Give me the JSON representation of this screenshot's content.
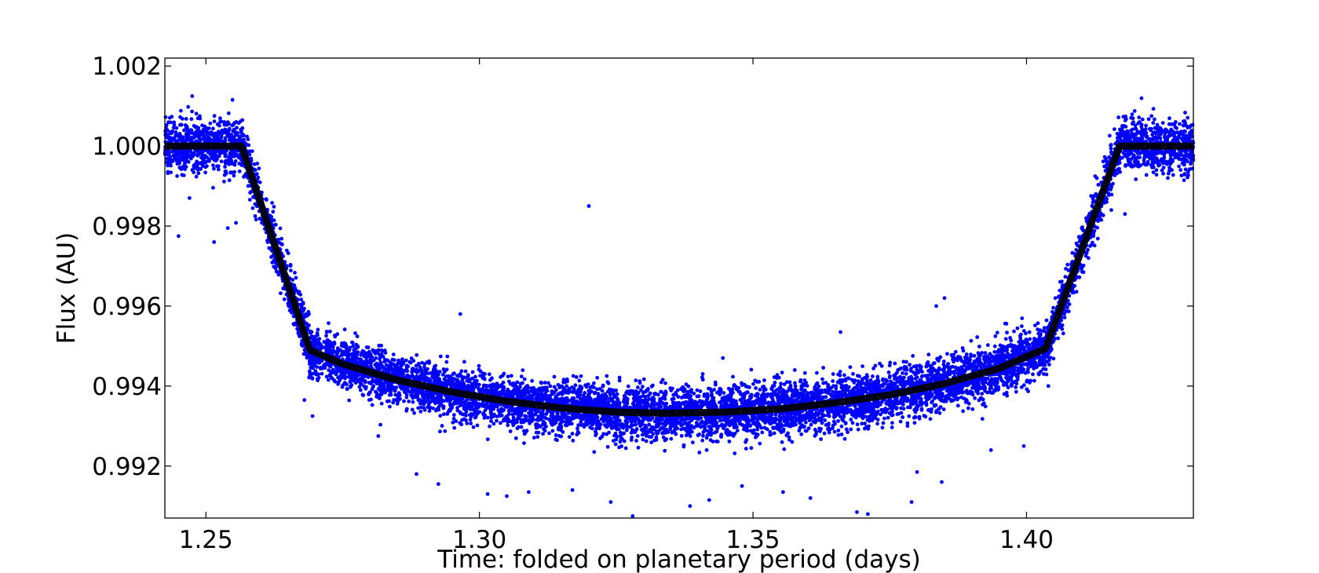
{
  "chart_data": {
    "type": "scatter",
    "title": "",
    "xlabel": "Time: folded on planetary period (days)",
    "ylabel": "Flux (AU)",
    "xlim": [
      1.2425,
      1.4305
    ],
    "ylim": [
      0.9907,
      1.0022
    ],
    "x_ticks": [
      {
        "value": 1.25,
        "label": "1.25"
      },
      {
        "value": 1.3,
        "label": "1.30"
      },
      {
        "value": 1.35,
        "label": "1.35"
      },
      {
        "value": 1.4,
        "label": "1.40"
      }
    ],
    "y_ticks": [
      {
        "value": 0.992,
        "label": "0.992"
      },
      {
        "value": 0.994,
        "label": "0.994"
      },
      {
        "value": 0.996,
        "label": "0.996"
      },
      {
        "value": 0.998,
        "label": "0.998"
      },
      {
        "value": 1.0,
        "label": "1.000"
      },
      {
        "value": 1.002,
        "label": "1.002"
      }
    ],
    "grid": false,
    "colors": {
      "data": "#0000ff",
      "model": "#000000"
    },
    "series": [
      {
        "kind": "model-curve",
        "x": [
          1.2425,
          1.2565,
          1.269,
          1.275,
          1.285,
          1.295,
          1.305,
          1.315,
          1.325,
          1.3337,
          1.345,
          1.355,
          1.365,
          1.375,
          1.385,
          1.395,
          1.4035,
          1.417,
          1.4305
        ],
        "y": [
          1.0,
          1.0,
          0.9949,
          0.99455,
          0.99415,
          0.99385,
          0.99362,
          0.99345,
          0.99335,
          0.99332,
          0.99335,
          0.99343,
          0.99358,
          0.99378,
          0.99406,
          0.99444,
          0.99494,
          1.0,
          1.0
        ]
      },
      {
        "kind": "observations",
        "point_count": 9000,
        "scatter_sigma": 0.00032,
        "outliers": [
          {
            "x": 1.2475,
            "y": 1.00125
          },
          {
            "x": 1.245,
            "y": 0.99775
          },
          {
            "x": 1.2515,
            "y": 0.9976
          },
          {
            "x": 1.254,
            "y": 0.99795
          },
          {
            "x": 1.247,
            "y": 0.9987
          },
          {
            "x": 1.2555,
            "y": 0.99808
          },
          {
            "x": 1.259,
            "y": 0.99825
          },
          {
            "x": 1.32,
            "y": 0.9985
          },
          {
            "x": 1.2965,
            "y": 0.9958
          },
          {
            "x": 1.385,
            "y": 0.9962
          },
          {
            "x": 1.3835,
            "y": 0.996
          },
          {
            "x": 1.366,
            "y": 0.99535
          },
          {
            "x": 1.3445,
            "y": 0.9947
          },
          {
            "x": 1.4155,
            "y": 0.9984
          },
          {
            "x": 1.418,
            "y": 0.9983
          },
          {
            "x": 1.404,
            "y": 0.994
          },
          {
            "x": 1.3955,
            "y": 0.9944
          },
          {
            "x": 1.328,
            "y": 0.99075
          },
          {
            "x": 1.3385,
            "y": 0.991
          },
          {
            "x": 1.342,
            "y": 0.99115
          },
          {
            "x": 1.369,
            "y": 0.99085
          },
          {
            "x": 1.371,
            "y": 0.9908
          },
          {
            "x": 1.379,
            "y": 0.9911
          },
          {
            "x": 1.3015,
            "y": 0.9913
          },
          {
            "x": 1.305,
            "y": 0.99125
          },
          {
            "x": 1.309,
            "y": 0.99135
          },
          {
            "x": 1.2885,
            "y": 0.9918
          },
          {
            "x": 1.2925,
            "y": 0.99155
          },
          {
            "x": 1.3555,
            "y": 0.99135
          },
          {
            "x": 1.3605,
            "y": 0.9912
          },
          {
            "x": 1.3845,
            "y": 0.9916
          },
          {
            "x": 1.38,
            "y": 0.99185
          },
          {
            "x": 1.3935,
            "y": 0.9924
          },
          {
            "x": 1.3995,
            "y": 0.9925
          },
          {
            "x": 1.2815,
            "y": 0.99275
          },
          {
            "x": 1.268,
            "y": 0.99365
          },
          {
            "x": 1.2695,
            "y": 0.99325
          },
          {
            "x": 1.317,
            "y": 0.9914
          },
          {
            "x": 1.324,
            "y": 0.9911
          },
          {
            "x": 1.348,
            "y": 0.9915
          }
        ]
      }
    ]
  }
}
